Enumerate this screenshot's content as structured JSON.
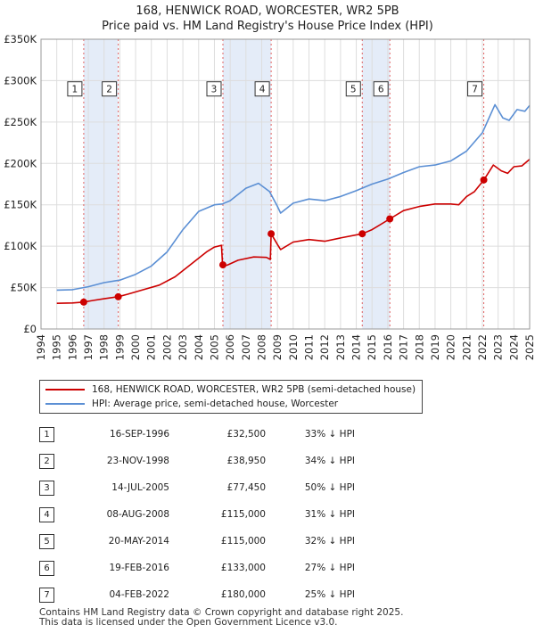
{
  "title": {
    "line1": "168, HENWICK ROAD, WORCESTER, WR2 5PB",
    "line2": "Price paid vs. HM Land Registry's House Price Index (HPI)"
  },
  "colors": {
    "price_line": "#cc0000",
    "hpi_line": "#5b8fd4",
    "shade": "#e4ecf8",
    "grid": "#dddddd",
    "marker_dash": "#e06060"
  },
  "chart_data": {
    "type": "line",
    "x_ticks": [
      1994,
      1995,
      1996,
      1997,
      1998,
      1999,
      2000,
      2001,
      2002,
      2003,
      2004,
      2005,
      2006,
      2007,
      2008,
      2009,
      2010,
      2011,
      2012,
      2013,
      2014,
      2015,
      2016,
      2017,
      2018,
      2019,
      2020,
      2021,
      2022,
      2023,
      2024,
      2025
    ],
    "xlim": [
      1994,
      2025
    ],
    "ylim": [
      0,
      350000
    ],
    "y_ticks": [
      {
        "v": 0,
        "label": "£0"
      },
      {
        "v": 50000,
        "label": "£50K"
      },
      {
        "v": 100000,
        "label": "£100K"
      },
      {
        "v": 150000,
        "label": "£150K"
      },
      {
        "v": 200000,
        "label": "£200K"
      },
      {
        "v": 250000,
        "label": "£250K"
      },
      {
        "v": 300000,
        "label": "£300K"
      },
      {
        "v": 350000,
        "label": "£350K"
      }
    ],
    "grid": true,
    "series": [
      {
        "name": "168, HENWICK ROAD, WORCESTER, WR2 5PB (semi-detached house)",
        "color": "#cc0000",
        "points": [
          [
            1995.0,
            31000
          ],
          [
            1996.0,
            31500
          ],
          [
            1996.71,
            32500
          ],
          [
            1997.3,
            34500
          ],
          [
            1998.0,
            36500
          ],
          [
            1998.9,
            38950
          ],
          [
            1999.5,
            42000
          ],
          [
            2000.5,
            47500
          ],
          [
            2001.5,
            53000
          ],
          [
            2002.5,
            63000
          ],
          [
            2003.5,
            78000
          ],
          [
            2004.5,
            93000
          ],
          [
            2005.0,
            99000
          ],
          [
            2005.45,
            101000
          ],
          [
            2005.52,
            77450
          ],
          [
            2005.8,
            77000
          ],
          [
            2006.5,
            83000
          ],
          [
            2007.5,
            87000
          ],
          [
            2008.3,
            86500
          ],
          [
            2008.55,
            84000
          ],
          [
            2008.6,
            115000
          ],
          [
            2009.0,
            102000
          ],
          [
            2009.2,
            96000
          ],
          [
            2010.0,
            105000
          ],
          [
            2011.0,
            108000
          ],
          [
            2012.0,
            106000
          ],
          [
            2013.0,
            110000
          ],
          [
            2014.38,
            115000
          ],
          [
            2015.0,
            120000
          ],
          [
            2016.13,
            133000
          ],
          [
            2017.0,
            143000
          ],
          [
            2018.0,
            148000
          ],
          [
            2019.0,
            151000
          ],
          [
            2020.0,
            151000
          ],
          [
            2020.5,
            150000
          ],
          [
            2021.0,
            160000
          ],
          [
            2021.5,
            166000
          ],
          [
            2022.09,
            180000
          ],
          [
            2022.7,
            198000
          ],
          [
            2023.2,
            191000
          ],
          [
            2023.6,
            188000
          ],
          [
            2024.0,
            196000
          ],
          [
            2024.5,
            197000
          ],
          [
            2025.0,
            205000
          ]
        ]
      },
      {
        "name": "HPI: Average price, semi-detached house, Worcester",
        "color": "#5b8fd4",
        "points": [
          [
            1995.0,
            47000
          ],
          [
            1996.0,
            47500
          ],
          [
            1997.0,
            51000
          ],
          [
            1998.0,
            56000
          ],
          [
            1999.0,
            59000
          ],
          [
            2000.0,
            66000
          ],
          [
            2001.0,
            76000
          ],
          [
            2002.0,
            93000
          ],
          [
            2003.0,
            120000
          ],
          [
            2004.0,
            142000
          ],
          [
            2005.0,
            150000
          ],
          [
            2005.5,
            151000
          ],
          [
            2006.0,
            155000
          ],
          [
            2007.0,
            170000
          ],
          [
            2007.8,
            176000
          ],
          [
            2008.5,
            166000
          ],
          [
            2009.0,
            148000
          ],
          [
            2009.2,
            140000
          ],
          [
            2010.0,
            152000
          ],
          [
            2011.0,
            157000
          ],
          [
            2012.0,
            155000
          ],
          [
            2013.0,
            160000
          ],
          [
            2014.0,
            167000
          ],
          [
            2015.0,
            175000
          ],
          [
            2016.0,
            181000
          ],
          [
            2017.0,
            189000
          ],
          [
            2018.0,
            196000
          ],
          [
            2019.0,
            198000
          ],
          [
            2020.0,
            203000
          ],
          [
            2021.0,
            215000
          ],
          [
            2022.0,
            237000
          ],
          [
            2022.8,
            271000
          ],
          [
            2023.3,
            255000
          ],
          [
            2023.7,
            252000
          ],
          [
            2024.2,
            265000
          ],
          [
            2024.7,
            263000
          ],
          [
            2025.0,
            270000
          ]
        ]
      }
    ],
    "sales": [
      {
        "n": "1",
        "x": 1996.71,
        "y": 32500
      },
      {
        "n": "2",
        "x": 1998.9,
        "y": 38950
      },
      {
        "n": "3",
        "x": 2005.54,
        "y": 77450
      },
      {
        "n": "4",
        "x": 2008.6,
        "y": 115000
      },
      {
        "n": "5",
        "x": 2014.38,
        "y": 115000
      },
      {
        "n": "6",
        "x": 2016.13,
        "y": 133000
      },
      {
        "n": "7",
        "x": 2022.09,
        "y": 180000
      }
    ],
    "shaded_ranges": [
      [
        1996.71,
        1998.9
      ],
      [
        2005.54,
        2008.6
      ],
      [
        2014.38,
        2016.13
      ],
      [
        2025.0,
        2025.3
      ]
    ],
    "box_labels_y": 290000
  },
  "legend": {
    "price_label": "168, HENWICK ROAD, WORCESTER, WR2 5PB (semi-detached house)",
    "hpi_label": "HPI: Average price, semi-detached house, Worcester"
  },
  "sales_table": [
    {
      "n": "1",
      "date": "16-SEP-1996",
      "price": "£32,500",
      "hpi": "33% ↓ HPI"
    },
    {
      "n": "2",
      "date": "23-NOV-1998",
      "price": "£38,950",
      "hpi": "34% ↓ HPI"
    },
    {
      "n": "3",
      "date": "14-JUL-2005",
      "price": "£77,450",
      "hpi": "50% ↓ HPI"
    },
    {
      "n": "4",
      "date": "08-AUG-2008",
      "price": "£115,000",
      "hpi": "31% ↓ HPI"
    },
    {
      "n": "5",
      "date": "20-MAY-2014",
      "price": "£115,000",
      "hpi": "32% ↓ HPI"
    },
    {
      "n": "6",
      "date": "19-FEB-2016",
      "price": "£133,000",
      "hpi": "27% ↓ HPI"
    },
    {
      "n": "7",
      "date": "04-FEB-2022",
      "price": "£180,000",
      "hpi": "25% ↓ HPI"
    }
  ],
  "footer": {
    "line1": "Contains HM Land Registry data © Crown copyright and database right 2025.",
    "line2": "This data is licensed under the Open Government Licence v3.0."
  }
}
